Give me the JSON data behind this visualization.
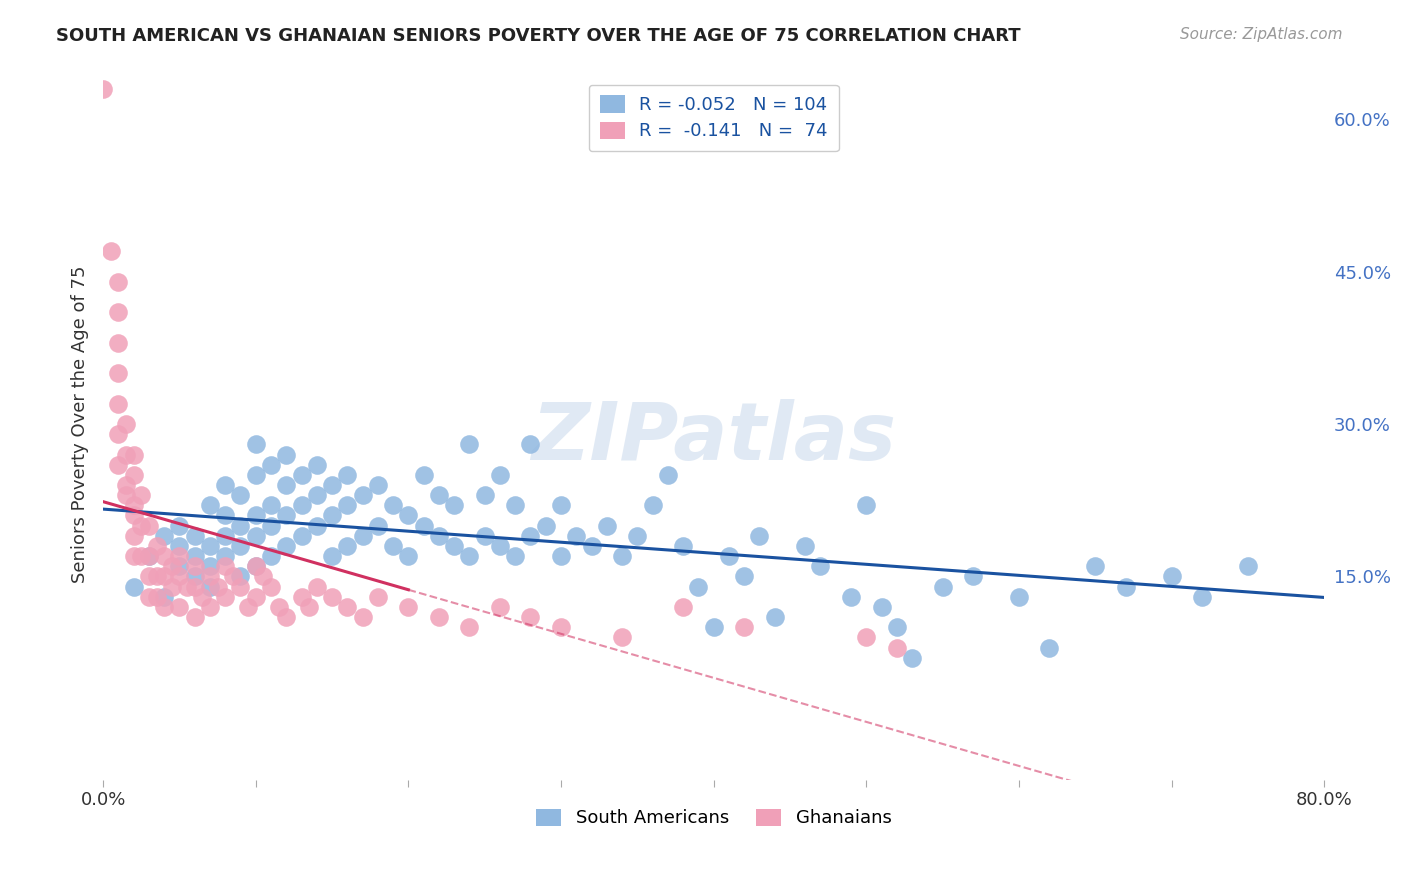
{
  "title": "SOUTH AMERICAN VS GHANAIAN SENIORS POVERTY OVER THE AGE OF 75 CORRELATION CHART",
  "source": "Source: ZipAtlas.com",
  "ylabel": "Seniors Poverty Over the Age of 75",
  "xlim": [
    0.0,
    0.8
  ],
  "ylim": [
    -0.05,
    0.65
  ],
  "yticks_right": [
    0.15,
    0.3,
    0.45,
    0.6
  ],
  "ytick_right_labels": [
    "15.0%",
    "30.0%",
    "45.0%",
    "60.0%"
  ],
  "legend_R_blue": "-0.052",
  "legend_N_blue": "104",
  "legend_R_pink": "-0.141",
  "legend_N_pink": "74",
  "blue_color": "#90b8e0",
  "pink_color": "#f0a0b8",
  "blue_line_color": "#1a52a0",
  "pink_line_color": "#d03060",
  "grid_color": "#cccccc",
  "south_american_x": [
    0.02,
    0.03,
    0.04,
    0.04,
    0.05,
    0.05,
    0.05,
    0.06,
    0.06,
    0.06,
    0.07,
    0.07,
    0.07,
    0.07,
    0.08,
    0.08,
    0.08,
    0.08,
    0.09,
    0.09,
    0.09,
    0.09,
    0.1,
    0.1,
    0.1,
    0.1,
    0.1,
    0.11,
    0.11,
    0.11,
    0.11,
    0.12,
    0.12,
    0.12,
    0.12,
    0.13,
    0.13,
    0.13,
    0.14,
    0.14,
    0.14,
    0.15,
    0.15,
    0.15,
    0.16,
    0.16,
    0.16,
    0.17,
    0.17,
    0.18,
    0.18,
    0.19,
    0.19,
    0.2,
    0.2,
    0.21,
    0.21,
    0.22,
    0.22,
    0.23,
    0.23,
    0.24,
    0.24,
    0.25,
    0.25,
    0.26,
    0.26,
    0.27,
    0.27,
    0.28,
    0.28,
    0.29,
    0.3,
    0.3,
    0.31,
    0.32,
    0.33,
    0.34,
    0.35,
    0.36,
    0.37,
    0.38,
    0.39,
    0.4,
    0.41,
    0.42,
    0.43,
    0.44,
    0.46,
    0.47,
    0.49,
    0.5,
    0.51,
    0.52,
    0.53,
    0.55,
    0.57,
    0.6,
    0.62,
    0.65,
    0.67,
    0.7,
    0.72,
    0.75
  ],
  "south_american_y": [
    0.14,
    0.17,
    0.13,
    0.19,
    0.16,
    0.18,
    0.2,
    0.15,
    0.17,
    0.19,
    0.14,
    0.16,
    0.18,
    0.22,
    0.17,
    0.19,
    0.21,
    0.24,
    0.15,
    0.18,
    0.2,
    0.23,
    0.16,
    0.19,
    0.21,
    0.25,
    0.28,
    0.17,
    0.2,
    0.22,
    0.26,
    0.18,
    0.21,
    0.24,
    0.27,
    0.19,
    0.22,
    0.25,
    0.2,
    0.23,
    0.26,
    0.17,
    0.21,
    0.24,
    0.18,
    0.22,
    0.25,
    0.19,
    0.23,
    0.2,
    0.24,
    0.18,
    0.22,
    0.17,
    0.21,
    0.2,
    0.25,
    0.19,
    0.23,
    0.18,
    0.22,
    0.17,
    0.28,
    0.19,
    0.23,
    0.18,
    0.25,
    0.17,
    0.22,
    0.19,
    0.28,
    0.2,
    0.17,
    0.22,
    0.19,
    0.18,
    0.2,
    0.17,
    0.19,
    0.22,
    0.25,
    0.18,
    0.14,
    0.1,
    0.17,
    0.15,
    0.19,
    0.11,
    0.18,
    0.16,
    0.13,
    0.22,
    0.12,
    0.1,
    0.07,
    0.14,
    0.15,
    0.13,
    0.08,
    0.16,
    0.14,
    0.15,
    0.13,
    0.16
  ],
  "ghanaian_x": [
    0.0,
    0.005,
    0.01,
    0.01,
    0.01,
    0.01,
    0.01,
    0.01,
    0.01,
    0.015,
    0.015,
    0.015,
    0.015,
    0.02,
    0.02,
    0.02,
    0.02,
    0.02,
    0.02,
    0.025,
    0.025,
    0.025,
    0.03,
    0.03,
    0.03,
    0.03,
    0.035,
    0.035,
    0.035,
    0.04,
    0.04,
    0.04,
    0.045,
    0.045,
    0.05,
    0.05,
    0.05,
    0.055,
    0.06,
    0.06,
    0.06,
    0.065,
    0.07,
    0.07,
    0.075,
    0.08,
    0.08,
    0.085,
    0.09,
    0.095,
    0.1,
    0.1,
    0.105,
    0.11,
    0.115,
    0.12,
    0.13,
    0.135,
    0.14,
    0.15,
    0.16,
    0.17,
    0.18,
    0.2,
    0.22,
    0.24,
    0.26,
    0.28,
    0.3,
    0.34,
    0.38,
    0.42,
    0.5,
    0.52
  ],
  "ghanaian_y": [
    0.63,
    0.47,
    0.44,
    0.41,
    0.38,
    0.35,
    0.32,
    0.29,
    0.26,
    0.23,
    0.3,
    0.27,
    0.24,
    0.21,
    0.27,
    0.25,
    0.22,
    0.19,
    0.17,
    0.23,
    0.2,
    0.17,
    0.2,
    0.17,
    0.15,
    0.13,
    0.18,
    0.15,
    0.13,
    0.17,
    0.15,
    0.12,
    0.16,
    0.14,
    0.17,
    0.15,
    0.12,
    0.14,
    0.16,
    0.14,
    0.11,
    0.13,
    0.15,
    0.12,
    0.14,
    0.16,
    0.13,
    0.15,
    0.14,
    0.12,
    0.16,
    0.13,
    0.15,
    0.14,
    0.12,
    0.11,
    0.13,
    0.12,
    0.14,
    0.13,
    0.12,
    0.11,
    0.13,
    0.12,
    0.11,
    0.1,
    0.12,
    0.11,
    0.1,
    0.09,
    0.12,
    0.1,
    0.09,
    0.08
  ]
}
